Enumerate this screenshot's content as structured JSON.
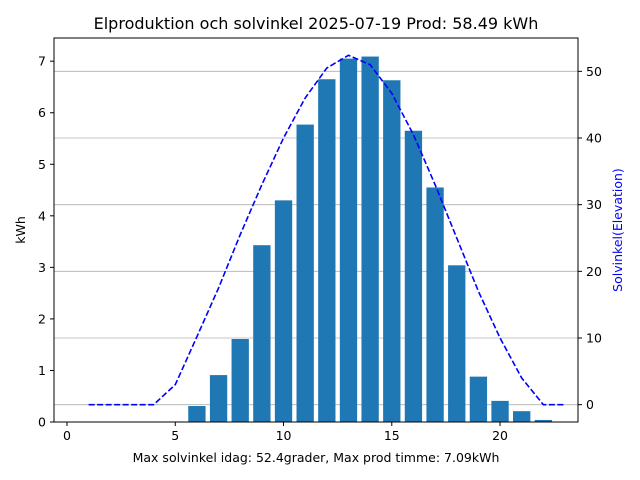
{
  "chart_data": {
    "type": "bar",
    "title": "Elproduktion och solvinkel 2025-07-19 Prod: 58.49 kWh",
    "xlabel": "Max solvinkel idag: 52.4grader, Max prod timme: 7.09kWh",
    "ylabel": "kWh",
    "y2label": "Solvinkel(Elevation)",
    "xlim": [
      -0.6,
      23.6
    ],
    "ylim": [
      0,
      7.45
    ],
    "y2lim": [
      -2.6,
      55
    ],
    "xticks": [
      0,
      5,
      10,
      15,
      20
    ],
    "yticks": [
      0,
      1,
      2,
      3,
      4,
      5,
      6,
      7
    ],
    "y2ticks": [
      0,
      10,
      20,
      30,
      40,
      50
    ],
    "grid": "horizontal lines on secondary axis",
    "series": [
      {
        "name": "",
        "kind": "bar",
        "color": "#1f77b4",
        "x": [
          5,
          6,
          7,
          8,
          9,
          10,
          11,
          12,
          13,
          14,
          15,
          16,
          17,
          18,
          19,
          20,
          21,
          22
        ],
        "values": [
          0.01,
          0.31,
          0.91,
          1.61,
          3.43,
          4.3,
          5.77,
          6.65,
          7.05,
          7.09,
          6.63,
          5.65,
          4.55,
          3.04,
          0.88,
          0.41,
          0.21,
          0.04
        ]
      },
      {
        "name": "",
        "kind": "line",
        "axis": "secondary",
        "color": "#0000ff",
        "style": "dashed",
        "x": [
          1,
          2,
          3,
          4,
          5,
          6,
          7,
          8,
          9,
          10,
          11,
          12,
          13,
          14,
          15,
          16,
          17,
          18,
          19,
          20,
          21,
          22,
          23
        ],
        "values": [
          0,
          0,
          0,
          0,
          3,
          10.2,
          17.5,
          25.5,
          33,
          40,
          46,
          50.5,
          52.4,
          51,
          46.7,
          40.5,
          33,
          25,
          17,
          10,
          4,
          0,
          0
        ]
      }
    ]
  }
}
